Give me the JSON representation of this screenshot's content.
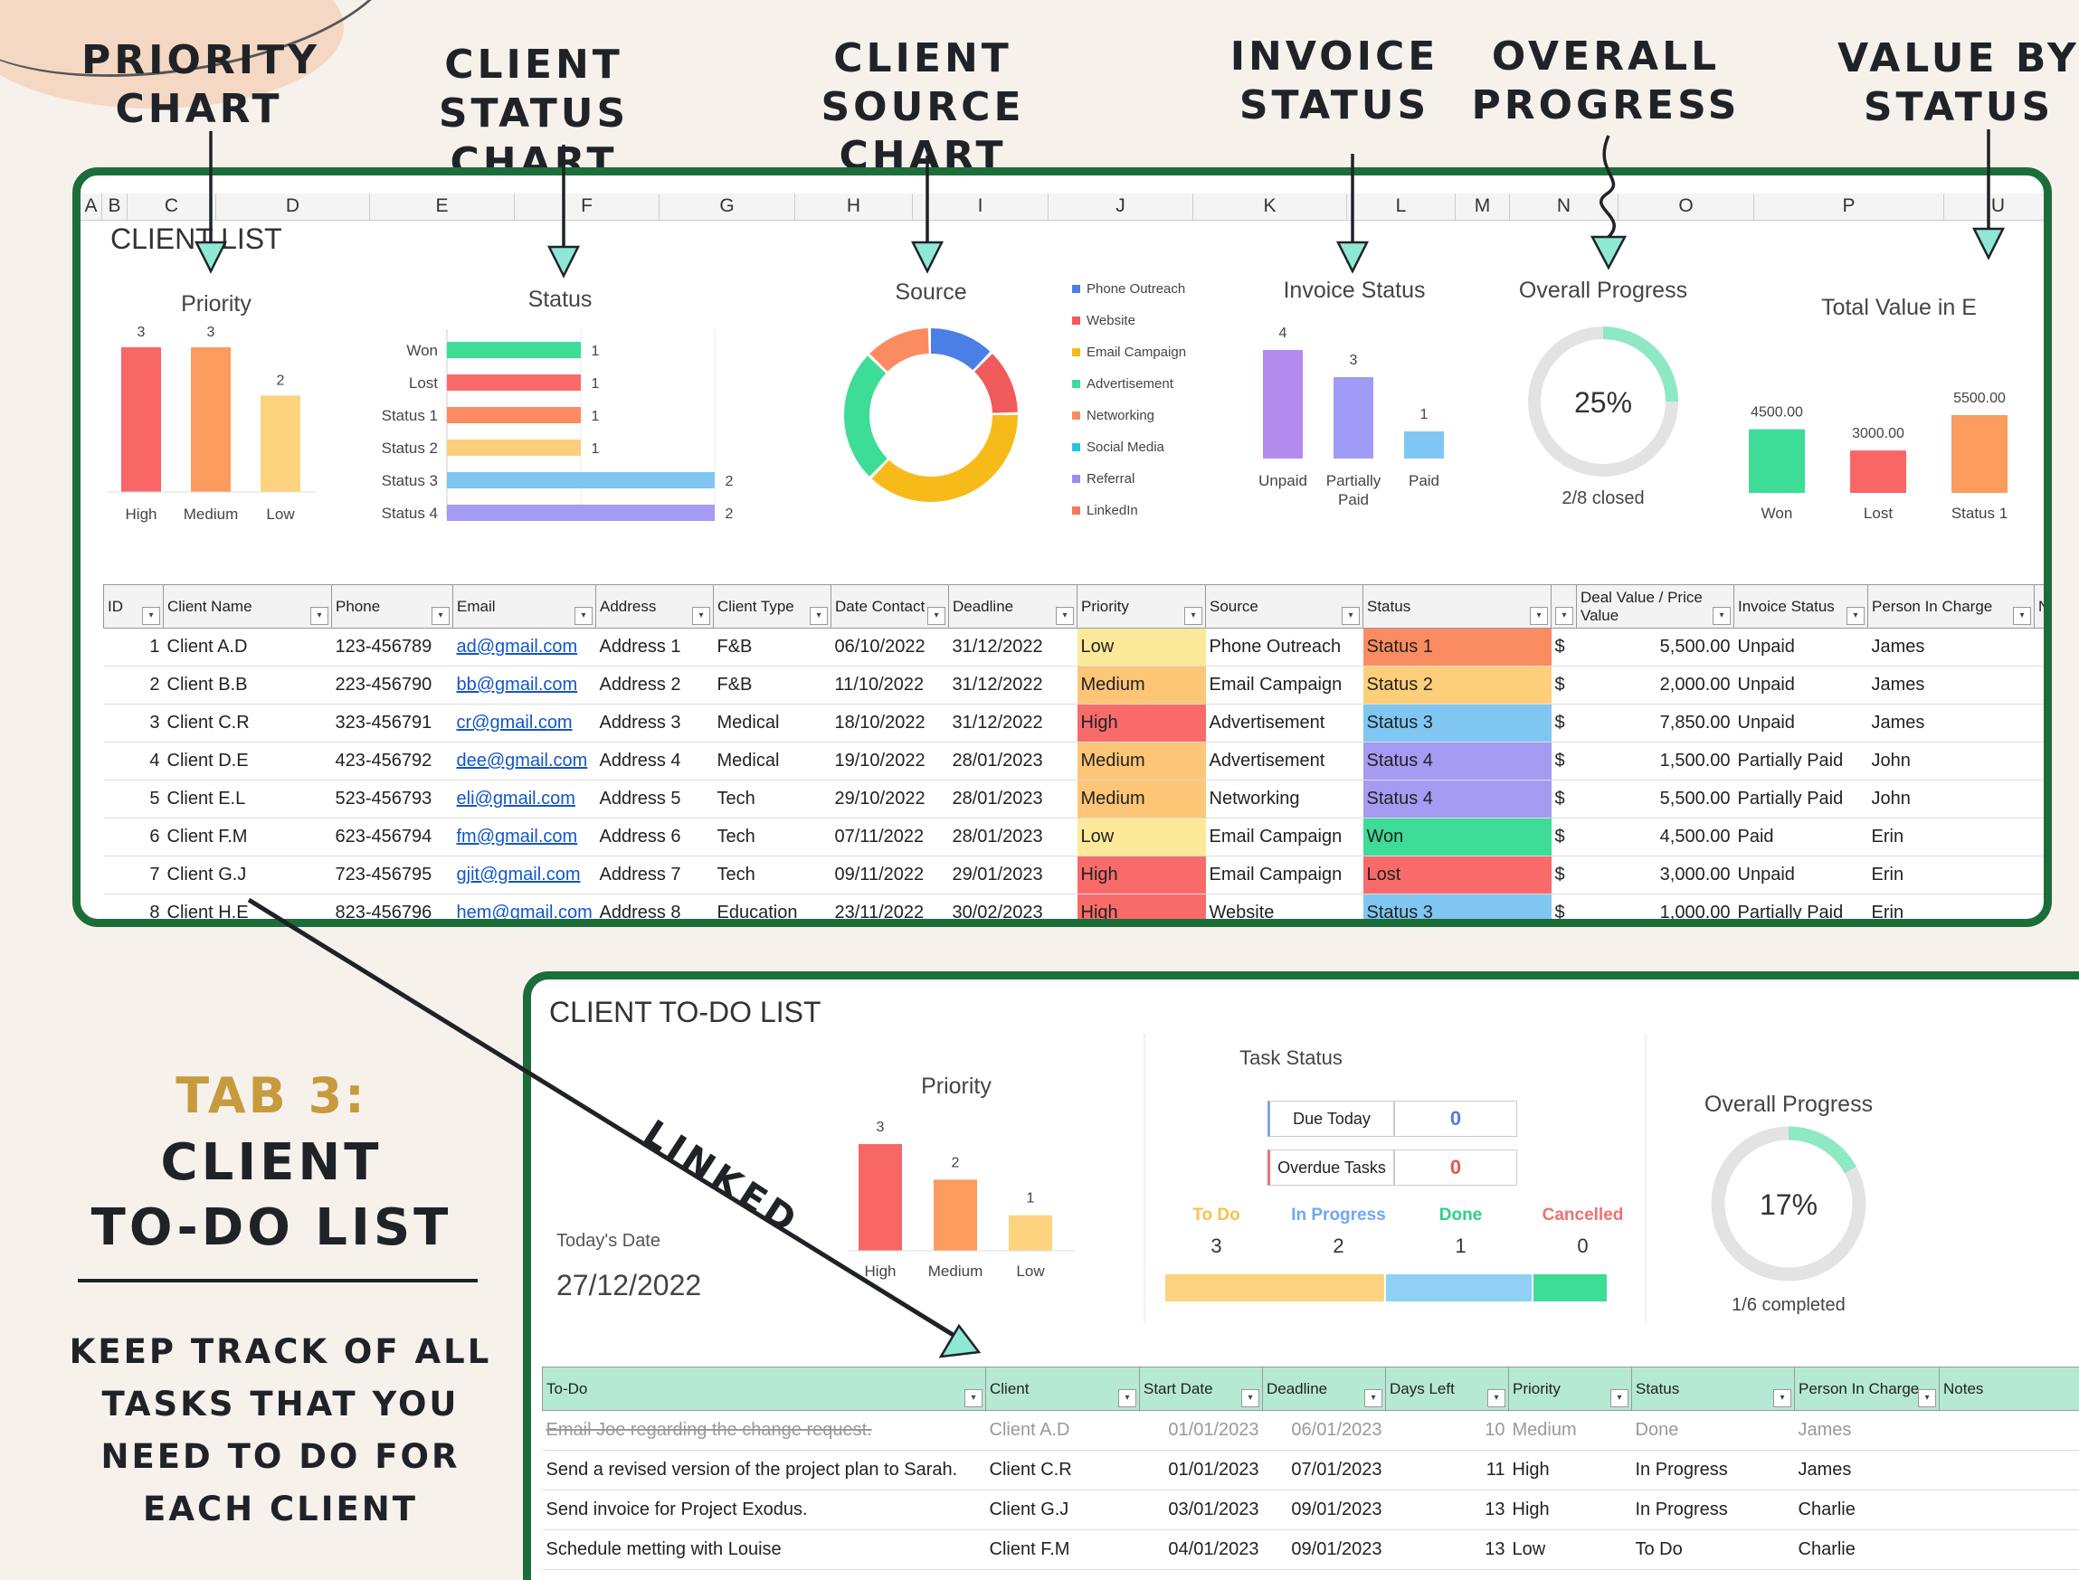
{
  "callouts": {
    "priority": "PRIORITY\nCHART",
    "status": "CLIENT STATUS\nCHART",
    "source": "CLIENT SOURCE\nCHART",
    "invoice": "INVOICE\nSTATUS",
    "progress": "OVERALL\nPROGRESS",
    "value": "VALUE BY\nSTATUS"
  },
  "sheet1": {
    "title": "CLIENT LIST",
    "columns": [
      "A",
      "B",
      "C",
      "D",
      "E",
      "F",
      "G",
      "H",
      "I",
      "J",
      "K",
      "L",
      "M",
      "N",
      "O",
      "P",
      "U"
    ],
    "priority_chart": {
      "title": "Priority",
      "categories": [
        "High",
        "Medium",
        "Low"
      ],
      "values": [
        3,
        3,
        2
      ],
      "colors": [
        "#f96666",
        "#fb9b5e",
        "#fdd380"
      ]
    },
    "status_chart": {
      "title": "Status",
      "categories": [
        "Won",
        "Lost",
        "Status 1",
        "Status 2",
        "Status 3",
        "Status 4"
      ],
      "values": [
        1,
        1,
        1,
        1,
        2,
        2
      ],
      "colors": [
        "#3ddc97",
        "#f96a6a",
        "#fb8c61",
        "#fdcf7a",
        "#7fc7f2",
        "#a59bf2"
      ]
    },
    "source_chart": {
      "title": "Source",
      "legend": [
        "Phone Outreach",
        "Website",
        "Email Campaign",
        "Advertisement",
        "Networking",
        "Social Media",
        "Referral",
        "LinkedIn"
      ],
      "legend_colors": [
        "#4a7fe6",
        "#f05a5a",
        "#f7bb19",
        "#3ddc97",
        "#fb8c61",
        "#29c2e0",
        "#9a8df0",
        "#f07b5a"
      ]
    },
    "invoice_chart": {
      "title": "Invoice Status",
      "categories": [
        "Unpaid",
        "Partially\nPaid",
        "Paid"
      ],
      "values": [
        4,
        3,
        1
      ],
      "colors": [
        "#b38bef",
        "#a09bf6",
        "#7fc7f2"
      ]
    },
    "progress": {
      "title": "Overall Progress",
      "percent_label": "25%",
      "value": 0.25,
      "caption": "2/8 closed"
    },
    "value_chart": {
      "title": "Total Value in E",
      "categories": [
        "Won",
        "Lost",
        "Status 1"
      ],
      "labels": [
        "4500.00",
        "3000.00",
        "5500.00"
      ],
      "values": [
        4500,
        3000,
        5500
      ],
      "colors": [
        "#3ddc97",
        "#f96666",
        "#fb9b5e"
      ]
    },
    "headers": [
      "ID",
      "Client Name",
      "Phone",
      "Email",
      "Address",
      "Client Type",
      "Date Contact",
      "Deadline",
      "Priority",
      "Source",
      "Status",
      "",
      "Deal Value / Price Value",
      "Invoice Status",
      "Person In Charge",
      "No"
    ],
    "rows": [
      {
        "id": "1",
        "name": "Client A.D",
        "phone": "123-456789",
        "email": "ad@gmail.com",
        "address": "Address 1",
        "type": "F&B",
        "contact": "06/10/2022",
        "deadline": "31/12/2022",
        "priority": "Low",
        "source": "Phone Outreach",
        "status": "Status 1",
        "cur": "$",
        "value": "5,500.00",
        "invoice": "Unpaid",
        "person": "James"
      },
      {
        "id": "2",
        "name": "Client B.B",
        "phone": "223-456790",
        "email": "bb@gmail.com",
        "address": "Address 2",
        "type": "F&B",
        "contact": "11/10/2022",
        "deadline": "31/12/2022",
        "priority": "Medium",
        "source": "Email Campaign",
        "status": "Status 2",
        "cur": "$",
        "value": "2,000.00",
        "invoice": "Unpaid",
        "person": "James"
      },
      {
        "id": "3",
        "name": "Client C.R",
        "phone": "323-456791",
        "email": "cr@gmail.com",
        "address": "Address 3",
        "type": "Medical",
        "contact": "18/10/2022",
        "deadline": "31/12/2022",
        "priority": "High",
        "source": "Advertisement",
        "status": "Status 3",
        "cur": "$",
        "value": "7,850.00",
        "invoice": "Unpaid",
        "person": "James"
      },
      {
        "id": "4",
        "name": "Client D.E",
        "phone": "423-456792",
        "email": "dee@gmail.com",
        "address": "Address 4",
        "type": "Medical",
        "contact": "19/10/2022",
        "deadline": "28/01/2023",
        "priority": "Medium",
        "source": "Advertisement",
        "status": "Status 4",
        "cur": "$",
        "value": "1,500.00",
        "invoice": "Partially Paid",
        "person": "John"
      },
      {
        "id": "5",
        "name": "Client E.L",
        "phone": "523-456793",
        "email": "eli@gmail.com",
        "address": "Address 5",
        "type": "Tech",
        "contact": "29/10/2022",
        "deadline": "28/01/2023",
        "priority": "Medium",
        "source": "Networking",
        "status": "Status 4",
        "cur": "$",
        "value": "5,500.00",
        "invoice": "Partially Paid",
        "person": "John"
      },
      {
        "id": "6",
        "name": "Client F.M",
        "phone": "623-456794",
        "email": "fm@gmail.com",
        "address": "Address 6",
        "type": "Tech",
        "contact": "07/11/2022",
        "deadline": "28/01/2023",
        "priority": "Low",
        "source": "Email Campaign",
        "status": "Won",
        "cur": "$",
        "value": "4,500.00",
        "invoice": "Paid",
        "person": "Erin"
      },
      {
        "id": "7",
        "name": "Client G.J",
        "phone": "723-456795",
        "email": "gjit@gmail.com",
        "address": "Address 7",
        "type": "Tech",
        "contact": "09/11/2022",
        "deadline": "29/01/2023",
        "priority": "High",
        "source": "Email Campaign",
        "status": "Lost",
        "cur": "$",
        "value": "3,000.00",
        "invoice": "Unpaid",
        "person": "Erin"
      },
      {
        "id": "8",
        "name": "Client H.E",
        "phone": "823-456796",
        "email": "hem@gmail.com",
        "address": "Address 8",
        "type": "Education",
        "contact": "23/11/2022",
        "deadline": "30/02/2023",
        "priority": "High",
        "source": "Website",
        "status": "Status 3",
        "cur": "$",
        "value": "1,000.00",
        "invoice": "Partially Paid",
        "person": "Erin"
      }
    ],
    "priority_colors": {
      "Low": "#fde99a",
      "Medium": "#fdc576",
      "High": "#f96b6b"
    },
    "status_colors": {
      "Status 1": "#fb8c61",
      "Status 2": "#fdcf7a",
      "Status 3": "#7fc7f2",
      "Status 4": "#a59bf2",
      "Won": "#3ddc97",
      "Lost": "#f96a6a"
    }
  },
  "sheet2": {
    "title": "CLIENT TO-DO LIST",
    "today_label": "Today's Date",
    "today": "27/12/2022",
    "priority_chart": {
      "title": "Priority",
      "categories": [
        "High",
        "Medium",
        "Low"
      ],
      "values": [
        3,
        2,
        1
      ],
      "colors": [
        "#f96666",
        "#fb9b5e",
        "#fdd380"
      ]
    },
    "task_status": {
      "title": "Task Status",
      "due_today_label": "Due Today",
      "due_today": "0",
      "overdue_label": "Overdue Tasks",
      "overdue": "0",
      "labels": [
        "To Do",
        "In Progress",
        "Done",
        "Cancelled"
      ],
      "label_colors": [
        "#f6c14a",
        "#6fa8f0",
        "#2bcf8a",
        "#f07070"
      ],
      "counts": [
        "3",
        "2",
        "1",
        "0"
      ],
      "values": [
        3,
        2,
        1,
        0
      ],
      "bar_colors": [
        "#fdd380",
        "#8fd0f4",
        "#3ddc97",
        "#f96666"
      ]
    },
    "progress": {
      "title": "Overall Progress",
      "percent_label": "17%",
      "value": 0.17,
      "caption": "1/6 completed"
    },
    "headers": [
      "To-Do",
      "Client",
      "Start Date",
      "Deadline",
      "Days Left",
      "Priority",
      "Status",
      "Person In Charge",
      "Notes"
    ],
    "rows": [
      {
        "todo": "Email Joe regarding the change request.",
        "client": "Client A.D",
        "start": "01/01/2023",
        "deadline": "06/01/2023",
        "days": "10",
        "priority": "Medium",
        "status": "Done",
        "person": "James"
      },
      {
        "todo": "Send a revised version of the project plan to Sarah.",
        "client": "Client C.R",
        "start": "01/01/2023",
        "deadline": "07/01/2023",
        "days": "11",
        "priority": "High",
        "status": "In Progress",
        "person": "James"
      },
      {
        "todo": "Send invoice for Project Exodus.",
        "client": "Client G.J",
        "start": "03/01/2023",
        "deadline": "09/01/2023",
        "days": "13",
        "priority": "High",
        "status": "In Progress",
        "person": "Charlie"
      },
      {
        "todo": "Schedule metting with Louise",
        "client": "Client F.M",
        "start": "04/01/2023",
        "deadline": "09/01/2023",
        "days": "13",
        "priority": "Low",
        "status": "To Do",
        "person": "Charlie"
      }
    ]
  },
  "side": {
    "tab": "TAB 3:",
    "heading": "CLIENT\nTO-DO LIST",
    "desc": "KEEP TRACK OF ALL\nTASKS THAT YOU\nNEED TO DO FOR\nEACH CLIENT",
    "linked": "LINKED"
  }
}
